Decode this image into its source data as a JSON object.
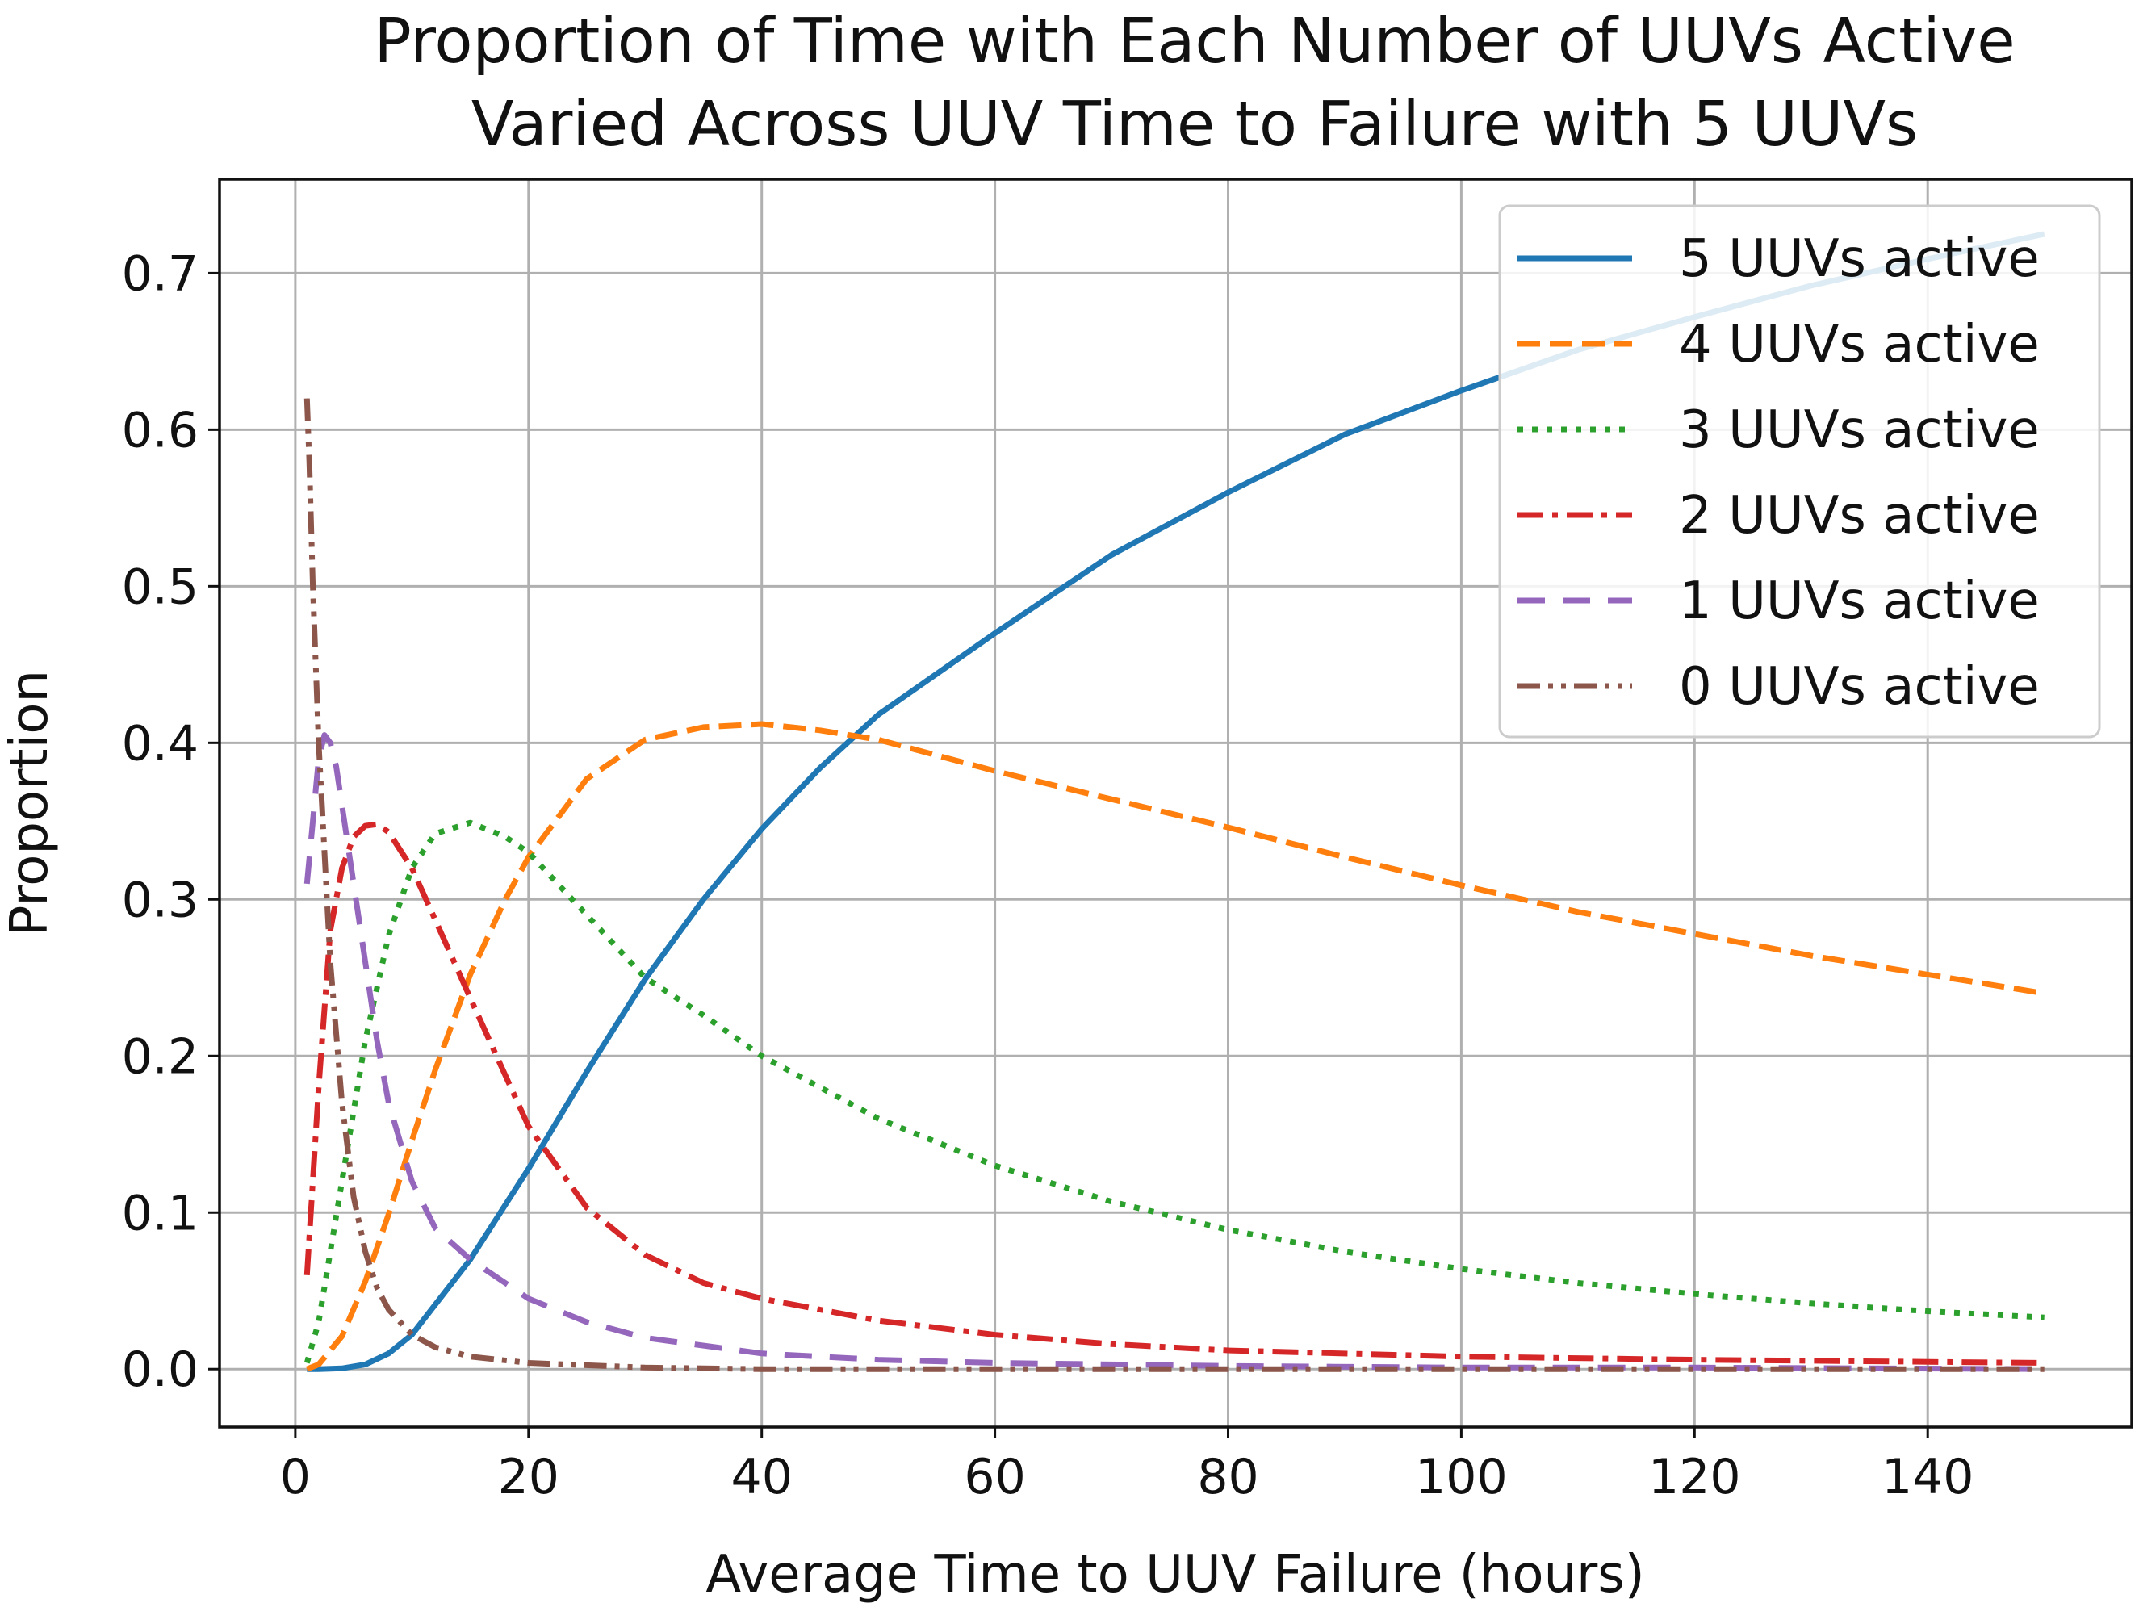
{
  "chart_data": {
    "type": "line",
    "title": [
      "Proportion of Time with Each Number of UUVs Active",
      "Varied Across UUV Time to Failure with 5 UUVs"
    ],
    "xlabel": "Average Time to UUV Failure (hours)",
    "ylabel": "Proportion",
    "xlim": [
      -6.5,
      157.5
    ],
    "ylim": [
      -0.037,
      0.76
    ],
    "xticks": [
      0,
      20,
      40,
      60,
      80,
      100,
      120,
      140
    ],
    "yticks": [
      0.0,
      0.1,
      0.2,
      0.3,
      0.4,
      0.5,
      0.6,
      0.7
    ],
    "ytick_labels": [
      "0.0",
      "0.1",
      "0.2",
      "0.3",
      "0.4",
      "0.5",
      "0.6",
      "0.7"
    ],
    "grid": true,
    "legend_position": "top-right",
    "series": [
      {
        "name": "5 UUVs active",
        "color": "#1f77b4",
        "dash": "solid",
        "x": [
          1,
          2,
          4,
          6,
          8,
          10,
          15,
          20,
          25,
          30,
          35,
          40,
          45,
          50,
          60,
          70,
          80,
          90,
          100,
          110,
          120,
          130,
          140,
          150
        ],
        "y": [
          0.0,
          0.0,
          0.0005,
          0.003,
          0.01,
          0.022,
          0.07,
          0.128,
          0.19,
          0.249,
          0.3,
          0.345,
          0.384,
          0.418,
          0.47,
          0.52,
          0.56,
          0.597,
          0.625,
          0.651,
          0.672,
          0.692,
          0.709,
          0.725
        ]
      },
      {
        "name": "4 UUVs active",
        "color": "#ff7f0e",
        "dash": "long-dash",
        "x": [
          1,
          2,
          4,
          6,
          8,
          10,
          12,
          15,
          18,
          20,
          25,
          30,
          35,
          40,
          45,
          50,
          60,
          70,
          80,
          90,
          100,
          110,
          120,
          130,
          140,
          150
        ],
        "y": [
          0.0,
          0.003,
          0.021,
          0.056,
          0.099,
          0.146,
          0.191,
          0.252,
          0.3,
          0.327,
          0.377,
          0.402,
          0.41,
          0.412,
          0.408,
          0.402,
          0.382,
          0.364,
          0.346,
          0.327,
          0.309,
          0.292,
          0.278,
          0.264,
          0.252,
          0.24
        ]
      },
      {
        "name": "3 UUVs active",
        "color": "#2ca02c",
        "dash": "dotted",
        "x": [
          1,
          2,
          4,
          6,
          8,
          10,
          12,
          15,
          18,
          20,
          25,
          30,
          35,
          40,
          50,
          60,
          70,
          80,
          90,
          100,
          110,
          120,
          130,
          140,
          150
        ],
        "y": [
          0.004,
          0.03,
          0.12,
          0.21,
          0.277,
          0.32,
          0.342,
          0.349,
          0.34,
          0.33,
          0.29,
          0.25,
          0.226,
          0.2,
          0.16,
          0.13,
          0.107,
          0.089,
          0.075,
          0.064,
          0.055,
          0.048,
          0.042,
          0.037,
          0.033
        ]
      },
      {
        "name": "2 UUVs active",
        "color": "#d62728",
        "dash": "dash-dot",
        "x": [
          1,
          2,
          3,
          4,
          5,
          6,
          7,
          8,
          10,
          12,
          15,
          20,
          25,
          30,
          35,
          40,
          50,
          60,
          70,
          80,
          100,
          120,
          150
        ],
        "y": [
          0.06,
          0.18,
          0.28,
          0.32,
          0.34,
          0.347,
          0.348,
          0.343,
          0.32,
          0.287,
          0.237,
          0.155,
          0.103,
          0.073,
          0.055,
          0.045,
          0.031,
          0.022,
          0.016,
          0.012,
          0.008,
          0.006,
          0.004
        ]
      },
      {
        "name": "1 UUVs active",
        "color": "#9467bd",
        "dash": "loose-dash",
        "x": [
          1,
          1.5,
          2,
          2.5,
          3,
          3.5,
          4,
          5,
          6,
          7,
          8,
          10,
          12,
          15,
          20,
          25,
          30,
          40,
          50,
          60,
          80,
          100,
          120,
          150
        ],
        "y": [
          0.31,
          0.35,
          0.39,
          0.405,
          0.4,
          0.385,
          0.36,
          0.31,
          0.26,
          0.21,
          0.17,
          0.12,
          0.09,
          0.07,
          0.045,
          0.03,
          0.02,
          0.01,
          0.006,
          0.004,
          0.002,
          0.001,
          0.001,
          0.0
        ]
      },
      {
        "name": "0 UUVs active",
        "color": "#8c564b",
        "dash": "dash-dot-dot",
        "x": [
          1,
          1.2,
          1.5,
          2,
          2.5,
          3,
          4,
          5,
          6,
          7,
          8,
          10,
          12,
          15,
          20,
          30,
          40,
          60,
          80,
          100,
          150
        ],
        "y": [
          0.62,
          0.58,
          0.5,
          0.4,
          0.33,
          0.26,
          0.17,
          0.11,
          0.075,
          0.052,
          0.038,
          0.022,
          0.014,
          0.008,
          0.004,
          0.001,
          0.0,
          0.0,
          0.0,
          0.0,
          0.0
        ]
      }
    ]
  }
}
